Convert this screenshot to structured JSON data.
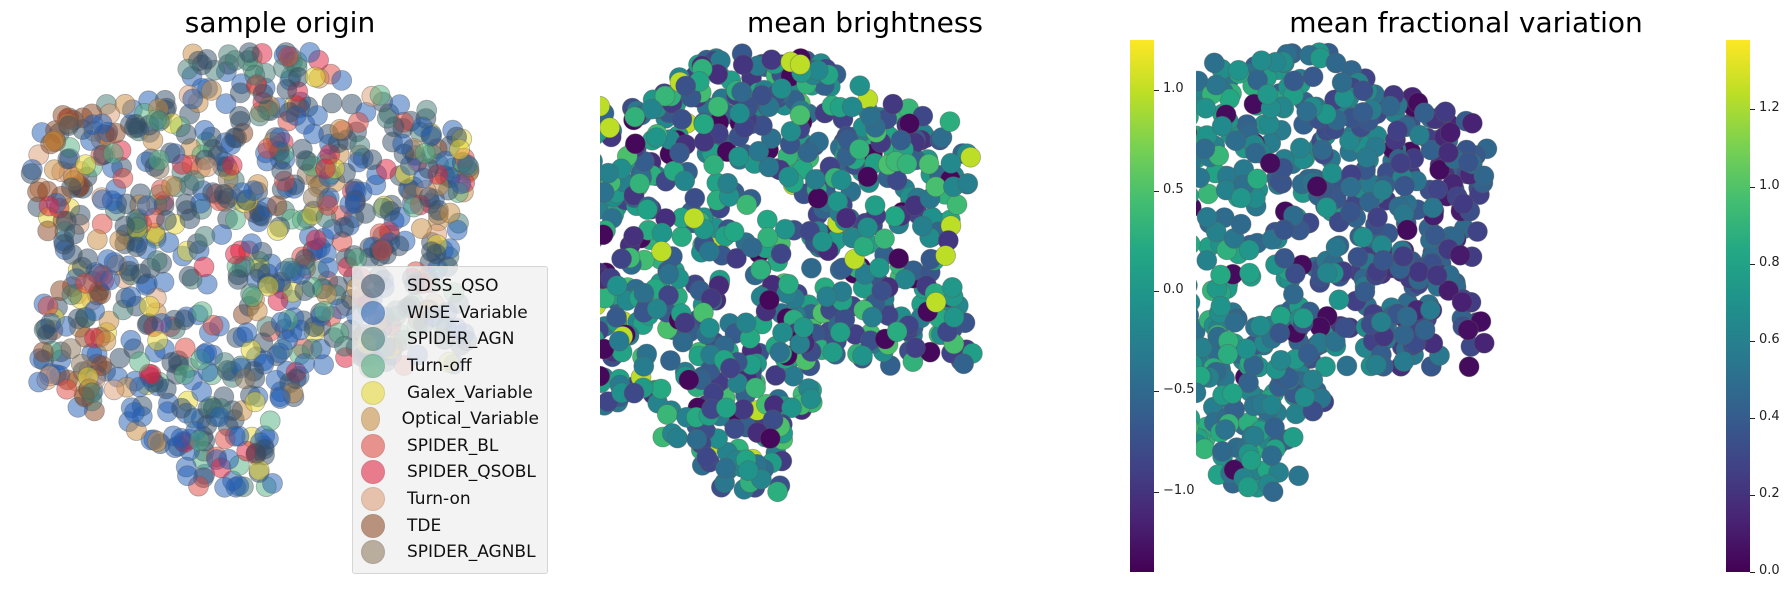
{
  "panels": [
    {
      "id": "origin",
      "title": "sample origin"
    },
    {
      "id": "brightness",
      "title": "mean brightness"
    },
    {
      "id": "fracvar",
      "title": "mean fractional variation"
    }
  ],
  "legend": {
    "entries": [
      {
        "label": "SDSS_QSO",
        "color": "#2f4a63"
      },
      {
        "label": "WISE_Variable",
        "color": "#1f5cb4"
      },
      {
        "label": "SPIDER_AGN",
        "color": "#3f7a72"
      },
      {
        "label": "Turn-off",
        "color": "#4fb07e"
      },
      {
        "label": "Galex_Variable",
        "color": "#e6d62a"
      },
      {
        "label": "Optical_Variable",
        "color": "#c88a3c"
      },
      {
        "label": "SPIDER_BL",
        "color": "#e0443c"
      },
      {
        "label": "SPIDER_QSOBL",
        "color": "#e01c3a"
      },
      {
        "label": "Turn-on",
        "color": "#dc9a72"
      },
      {
        "label": "TDE",
        "color": "#8a4420"
      },
      {
        "label": "SPIDER_AGNBL",
        "color": "#8a7458"
      }
    ]
  },
  "colorbars": [
    {
      "id": "brightness",
      "ticks": [
        "1.0",
        "0.5",
        "0.0",
        "−0.5",
        "−1.0"
      ],
      "tick_values": [
        1.0,
        0.5,
        0.0,
        -0.5,
        -1.0
      ],
      "vmin": -1.4,
      "vmax": 1.25
    },
    {
      "id": "fracvar",
      "ticks": [
        "1.2",
        "1.0",
        "0.8",
        "0.6",
        "0.4",
        "0.2",
        "0.0"
      ],
      "tick_values": [
        1.2,
        1.0,
        0.8,
        0.6,
        0.4,
        0.2,
        0.0
      ],
      "vmin": 0.0,
      "vmax": 1.38
    }
  ],
  "chart_data": [
    {
      "type": "scatter",
      "title": "sample origin",
      "xlabel": "",
      "ylabel": "",
      "legend_location": "lower-right",
      "series": [
        {
          "name": "SDSS_QSO"
        },
        {
          "name": "WISE_Variable"
        },
        {
          "name": "SPIDER_AGN"
        },
        {
          "name": "Turn-off"
        },
        {
          "name": "Galex_Variable"
        },
        {
          "name": "Optical_Variable"
        },
        {
          "name": "SPIDER_BL"
        },
        {
          "name": "SPIDER_QSOBL"
        },
        {
          "name": "Turn-on"
        },
        {
          "name": "TDE"
        },
        {
          "name": "SPIDER_AGNBL"
        }
      ],
      "grid": false,
      "axes_visible": false
    },
    {
      "type": "scatter",
      "title": "mean brightness",
      "colormap": "viridis",
      "color_range": [
        -1.4,
        1.25
      ],
      "grid": false,
      "axes_visible": false
    },
    {
      "type": "scatter",
      "title": "mean fractional variation",
      "colormap": "viridis",
      "color_range": [
        0.0,
        1.38
      ],
      "grid": false,
      "axes_visible": false
    }
  ]
}
